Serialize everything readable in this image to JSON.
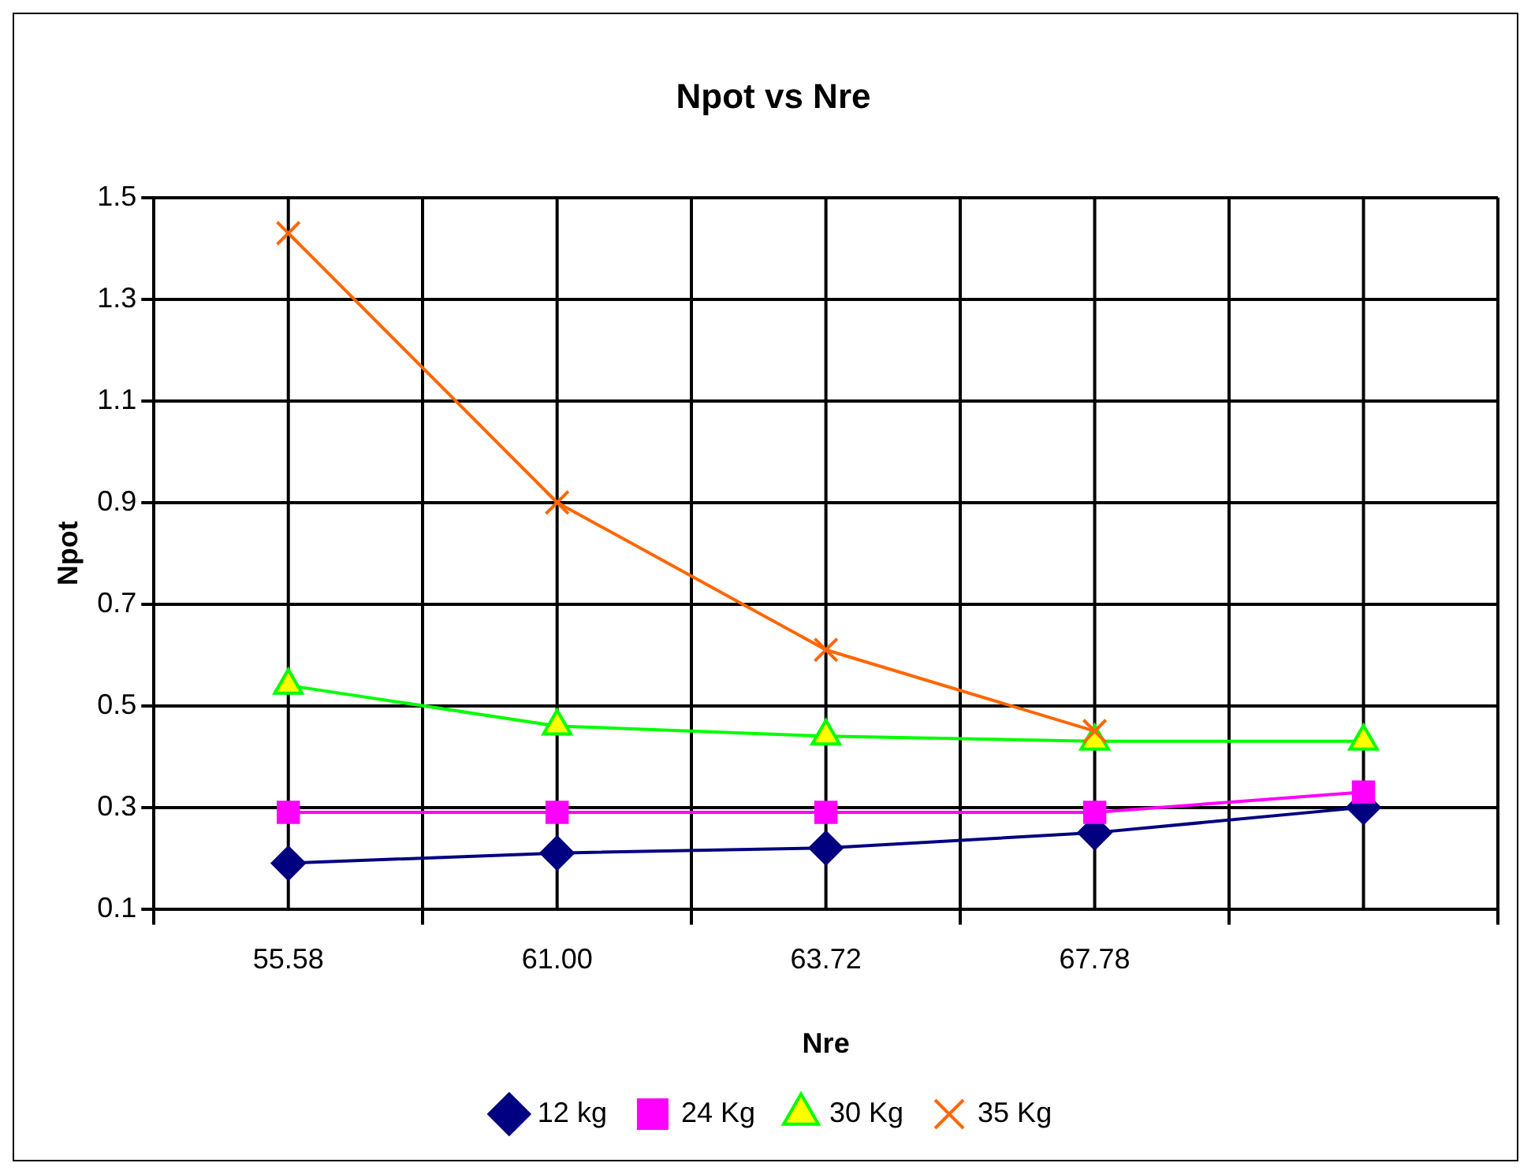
{
  "chart_data": {
    "type": "line",
    "title": "Npot vs Nre",
    "xlabel": "Nre",
    "ylabel": "Npot",
    "categories": [
      "55.58",
      "61.00",
      "63.72",
      "67.78",
      null
    ],
    "series": [
      {
        "name": "12 kg",
        "color": "#000080",
        "marker": "diamond",
        "values": [
          0.19,
          0.21,
          0.22,
          0.25,
          0.3
        ]
      },
      {
        "name": "24 Kg",
        "color": "#ff00ff",
        "marker": "square",
        "values": [
          0.29,
          0.29,
          0.29,
          0.29,
          0.33
        ]
      },
      {
        "name": "30 Kg",
        "color": "#00ff00",
        "marker": "triangle",
        "values": [
          0.54,
          0.46,
          0.44,
          0.43,
          0.43
        ]
      },
      {
        "name": "35 Kg",
        "color": "#ff6600",
        "marker": "cross",
        "values": [
          1.43,
          0.9,
          0.61,
          0.45,
          null
        ]
      }
    ],
    "ylim": [
      0.1,
      1.5
    ],
    "yticks": [
      0.1,
      0.3,
      0.5,
      0.7,
      0.9,
      1.1,
      1.3,
      1.5
    ],
    "grid": true,
    "legend": "bottom"
  }
}
